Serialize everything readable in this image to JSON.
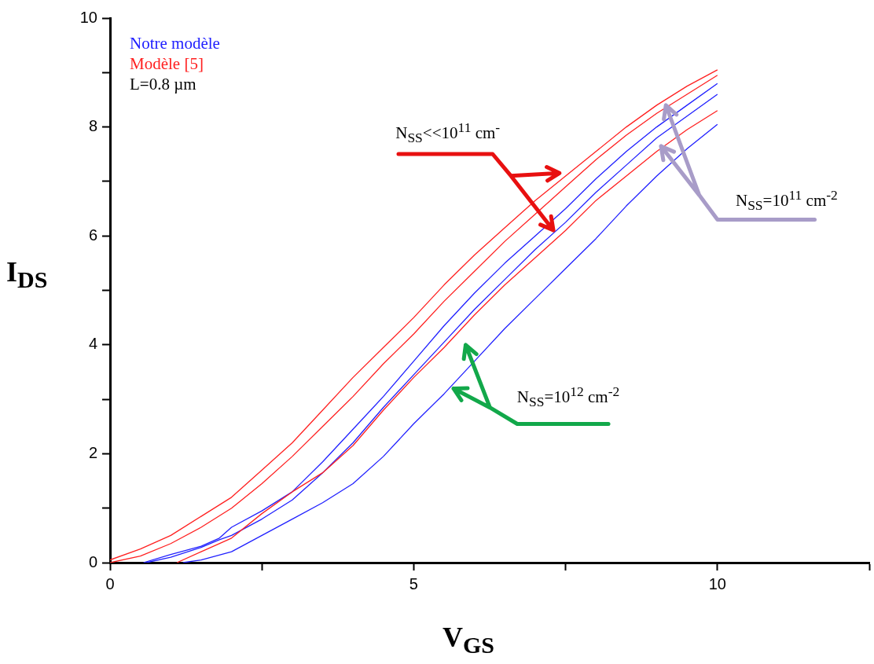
{
  "chart_data": {
    "type": "line",
    "xlabel": "V$_{GS}$",
    "ylabel": "I$_{DS}$",
    "legend": "top left",
    "grid": false,
    "xlim": [
      0,
      12.5
    ],
    "xticks": [
      0,
      {
        "value": 2.5,
        "label": null
      },
      5,
      {
        "value": 7.5,
        "label": null
      },
      10,
      {
        "value": 12.5,
        "label": null
      }
    ],
    "ylim": [
      0,
      10
    ],
    "yticks": [
      0,
      {
        "value": 1,
        "label": null
      },
      2,
      {
        "value": 3,
        "label": null
      },
      4,
      {
        "value": 5,
        "label": null
      },
      6,
      {
        "value": 7,
        "label": null
      },
      8,
      {
        "value": 9,
        "label": null
      },
      10
    ],
    "series": [
      {
        "name": "Modèle [5]",
        "color": "#ff2020",
        "x": [
          0,
          0.5,
          1,
          1.5,
          2,
          2.5,
          3,
          3.5,
          4,
          4.5,
          5,
          5.5,
          6,
          6.5,
          7,
          7.5,
          8,
          8.5,
          9,
          9.5,
          10
        ],
        "values": [
          0.05,
          0.25,
          0.5,
          0.85,
          1.2,
          1.7,
          2.2,
          2.8,
          3.4,
          3.95,
          4.5,
          5.1,
          5.65,
          6.15,
          6.65,
          7.1,
          7.55,
          8.0,
          8.4,
          8.75,
          9.05
        ]
      },
      {
        "color": "#ff2020",
        "x": [
          0,
          0.5,
          1,
          1.5,
          2,
          2.5,
          3,
          3.5,
          4,
          4.5,
          5,
          5.5,
          6,
          6.5,
          7,
          7.5,
          8,
          8.5,
          9,
          9.5,
          10
        ],
        "values": [
          0,
          0.12,
          0.35,
          0.65,
          1.0,
          1.45,
          1.95,
          2.5,
          3.05,
          3.65,
          4.2,
          4.8,
          5.35,
          5.9,
          6.4,
          6.9,
          7.4,
          7.85,
          8.25,
          8.6,
          8.95
        ]
      },
      {
        "color": "#ff2020",
        "x": [
          1.1,
          1.5,
          2,
          2.5,
          3,
          3.5,
          4,
          4.5,
          5,
          5.5,
          6,
          6.5,
          7,
          7.5,
          8,
          8.5,
          9,
          9.5,
          10
        ],
        "values": [
          0,
          0.2,
          0.45,
          0.9,
          1.3,
          1.65,
          2.15,
          2.8,
          3.4,
          3.95,
          4.55,
          5.1,
          5.6,
          6.1,
          6.65,
          7.1,
          7.55,
          7.95,
          8.3
        ]
      },
      {
        "name": "Notre modèle",
        "color": "#2020ff",
        "x": [
          0.55,
          1,
          1.5,
          1.8,
          2,
          2.5,
          3,
          3.5,
          4,
          4.5,
          5,
          5.5,
          6,
          6.5,
          7,
          7.5,
          8,
          8.5,
          9,
          9.5,
          10
        ],
        "values": [
          0,
          0.15,
          0.3,
          0.45,
          0.65,
          0.95,
          1.3,
          1.85,
          2.45,
          3.05,
          3.7,
          4.35,
          4.95,
          5.5,
          6.0,
          6.5,
          7.05,
          7.55,
          8.0,
          8.4,
          8.8
        ]
      },
      {
        "color": "#2020ff",
        "x": [
          0.6,
          1,
          1.5,
          1.8,
          2,
          2.5,
          3,
          3.5,
          4,
          4.5,
          5,
          5.5,
          6,
          6.5,
          7,
          7.5,
          8,
          8.5,
          9,
          9.5,
          10
        ],
        "values": [
          0,
          0.1,
          0.28,
          0.42,
          0.5,
          0.8,
          1.15,
          1.65,
          2.2,
          2.85,
          3.45,
          4.05,
          4.65,
          5.2,
          5.75,
          6.25,
          6.8,
          7.3,
          7.8,
          8.2,
          8.6
        ]
      },
      {
        "color": "#2020ff",
        "x": [
          1.2,
          1.5,
          2,
          2.5,
          3,
          3.5,
          4,
          4.5,
          5,
          5.5,
          6,
          6.5,
          7,
          7.5,
          8,
          8.5,
          9,
          9.5,
          10
        ],
        "values": [
          0,
          0.05,
          0.2,
          0.5,
          0.8,
          1.1,
          1.45,
          1.95,
          2.55,
          3.1,
          3.7,
          4.3,
          4.85,
          5.4,
          5.95,
          6.55,
          7.1,
          7.6,
          8.05
        ]
      }
    ],
    "annotations": [
      "L=0.8 µm",
      "N$_{SS}$<<10$^{11}$ cm$^{-}$",
      "N$_{SS}$=10$^{11}$ cm$^{-2}$",
      "N$_{SS}$=10$^{12}$ cm$^{-2}$"
    ]
  }
}
